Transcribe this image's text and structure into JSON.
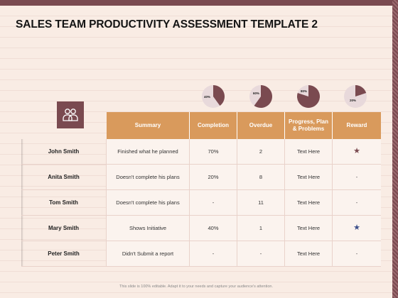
{
  "title": "SALES TEAM PRODUCTIVITY ASSESSMENT TEMPLATE 2",
  "pies": [
    {
      "label": "40%",
      "value": 40,
      "colors": {
        "fill": "#7a4a50",
        "rest": "#e8d9db"
      }
    },
    {
      "label": "60%",
      "value": 60,
      "colors": {
        "fill": "#7a4a50",
        "rest": "#e8d9db"
      }
    },
    {
      "label": "80%",
      "value": 80,
      "colors": {
        "fill": "#7a4a50",
        "rest": "#e8d9db"
      }
    },
    {
      "label": "20%",
      "value": 20,
      "colors": {
        "fill": "#7a4a50",
        "rest": "#e8d9db"
      }
    }
  ],
  "icon": "team-users-icon",
  "table": {
    "headers": [
      "Summary",
      "Completion",
      "Overdue",
      "Progress, Plan & Problems",
      "Reward"
    ],
    "rows": [
      {
        "name": "John Smith",
        "summary": "Finished what he planned",
        "completion": "70%",
        "overdue": "2",
        "progress": "Text Here",
        "reward": "★",
        "reward_color": "#7a4a50"
      },
      {
        "name": "Anita Smith",
        "summary": "Doesn't complete his plans",
        "completion": "20%",
        "overdue": "8",
        "progress": "Text Here",
        "reward": "-",
        "reward_color": "#444444"
      },
      {
        "name": "Tom Smith",
        "summary": "Doesn't complete his plans",
        "completion": "-",
        "overdue": "11",
        "progress": "Text Here",
        "reward": "-",
        "reward_color": "#444444"
      },
      {
        "name": "Mary Smith",
        "summary": "Shows Initiative",
        "completion": "40%",
        "overdue": "1",
        "progress": "Text Here",
        "reward": "★",
        "reward_color": "#3d4f8a"
      },
      {
        "name": "Peter Smith",
        "summary": "Didn't Submit a report",
        "completion": "-",
        "overdue": "-",
        "progress": "Text Here",
        "reward": "-",
        "reward_color": "#444444"
      }
    ]
  },
  "footer": "This slide is 100% editable. Adapt it to your needs and capture your audience's attention.",
  "colors": {
    "accent": "#d99a5c",
    "brand": "#7a4a50",
    "background": "#f9ece4"
  }
}
